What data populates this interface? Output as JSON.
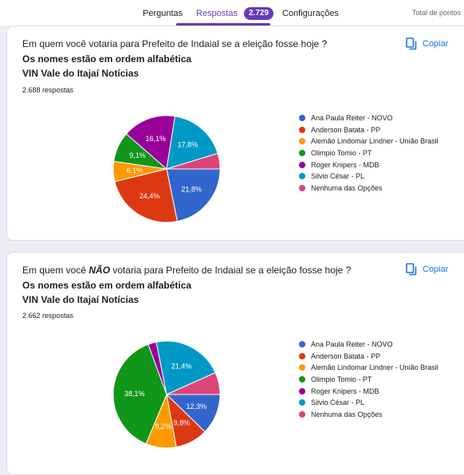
{
  "tabs": {
    "questions": "Perguntas",
    "responses": "Respostas",
    "responses_count": "2.729",
    "settings": "Configurações",
    "total_points": "Total de pontos"
  },
  "copy_label": "Copiar",
  "legend_labels": [
    "Ana Paula Reiter - NOVO",
    "Anderson Batata - PP",
    "Alemão Lindomar Lindner - União Brasil",
    "Olimpio Tomio - PT",
    "Roger Knipers - MDB",
    "Silvio César - PL",
    "Nenhuma das Opções"
  ],
  "colors": [
    "#3366cc",
    "#dc3912",
    "#ff9900",
    "#109618",
    "#990099",
    "#0099c6",
    "#dd4477"
  ],
  "q1": {
    "title": "Em quem você votaria para Prefeito de Indaial se a eleição fosse hoje ?",
    "line2": "Os nomes estão em ordem alfabética",
    "line3": "VIN Vale do Itajaí Notícias",
    "responses": "2.688 respostas"
  },
  "q2": {
    "title_pre": "Em quem você ",
    "title_emph": "NÃO",
    "title_post": " votaria para Prefeito de Indaial se a eleição fosse hoje ?",
    "line2": "Os nomes estão em ordem alfabética",
    "line3": "VIN Vale do Itajaí Notícias",
    "responses": "2.662 respostas"
  },
  "chart_data": [
    {
      "type": "pie",
      "labels": [
        "Ana Paula Reiter - NOVO",
        "Anderson Batata - PP",
        "Alemão Lindomar Lindner - União Brasil",
        "Olimpio Tomio - PT",
        "Roger Knipers - MDB",
        "Silvio César - PL",
        "Nenhuma das Opções"
      ],
      "values": [
        21.8,
        24.4,
        6.1,
        9.1,
        16.1,
        17.8,
        4.7
      ],
      "data_labels": [
        "21,8%",
        "24,4%",
        "6,1%",
        "9,1%",
        "16,1%",
        "17,8%",
        ""
      ],
      "legend": "right"
    },
    {
      "type": "pie",
      "labels": [
        "Ana Paula Reiter - NOVO",
        "Anderson Batata - PP",
        "Alemão Lindomar Lindner - União Brasil",
        "Olimpio Tomio - PT",
        "Roger Knipers - MDB",
        "Silvio César - PL",
        "Nenhuma das Opções"
      ],
      "values": [
        12.3,
        9.8,
        9.2,
        38.1,
        2.5,
        21.4,
        6.7
      ],
      "data_labels": [
        "12,3%",
        "9,8%",
        "9,2%",
        "38,1%",
        "",
        "21,4%",
        ""
      ],
      "legend": "right"
    }
  ]
}
